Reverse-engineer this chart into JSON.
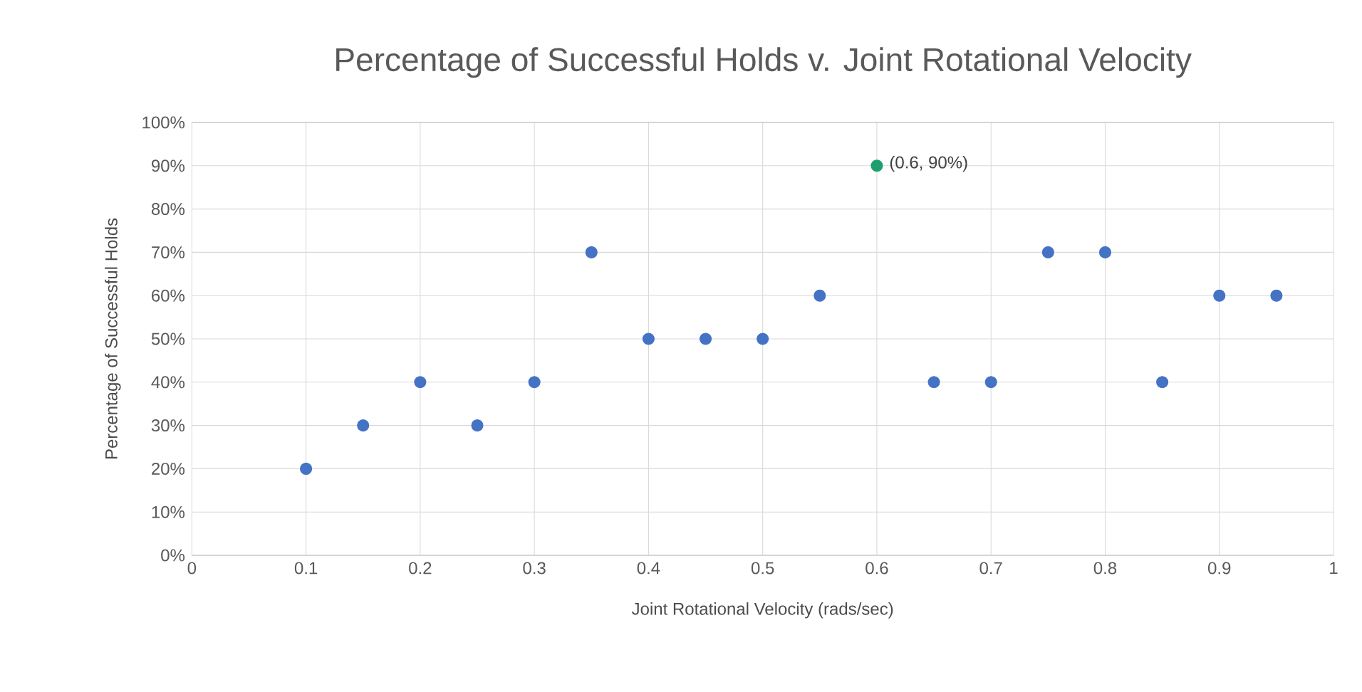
{
  "chart_data": {
    "type": "scatter",
    "title": "Percentage of Successful Holds v. Joint Rotational Velocity",
    "xlabel": "Joint Rotational Velocity (rads/sec)",
    "ylabel": "Percentage of Successful Holds",
    "x": [
      0.1,
      0.15,
      0.2,
      0.25,
      0.3,
      0.35,
      0.4,
      0.45,
      0.5,
      0.55,
      0.6,
      0.65,
      0.7,
      0.75,
      0.8,
      0.85,
      0.9,
      0.95
    ],
    "values": [
      20,
      30,
      40,
      30,
      40,
      70,
      50,
      50,
      50,
      60,
      90,
      40,
      40,
      70,
      70,
      40,
      60,
      60
    ],
    "colors": [
      "#4472c4",
      "#4472c4",
      "#4472c4",
      "#4472c4",
      "#4472c4",
      "#4472c4",
      "#4472c4",
      "#4472c4",
      "#4472c4",
      "#4472c4",
      "#1e9e6e",
      "#4472c4",
      "#4472c4",
      "#4472c4",
      "#4472c4",
      "#4472c4",
      "#4472c4",
      "#4472c4"
    ],
    "annotations": [
      {
        "text": "(0.6, 90%)",
        "x": 0.6,
        "y": 90
      }
    ],
    "xlim": [
      0,
      1
    ],
    "xticks": [
      0,
      0.1,
      0.2,
      0.3,
      0.4,
      0.5,
      0.6,
      0.7,
      0.8,
      0.9,
      1
    ],
    "ylim": [
      0,
      100
    ],
    "yticks": [
      {
        "value": 0,
        "label": "0%"
      },
      {
        "value": 10,
        "label": "10%"
      },
      {
        "value": 20,
        "label": "20%"
      },
      {
        "value": 30,
        "label": "30%"
      },
      {
        "value": 40,
        "label": "40%"
      },
      {
        "value": 50,
        "label": "50%"
      },
      {
        "value": 60,
        "label": "60%"
      },
      {
        "value": 70,
        "label": "70%"
      },
      {
        "value": 80,
        "label": "80%"
      },
      {
        "value": 90,
        "label": "90%"
      },
      {
        "value": 100,
        "label": "100%"
      }
    ],
    "grid": true,
    "legend": false
  }
}
